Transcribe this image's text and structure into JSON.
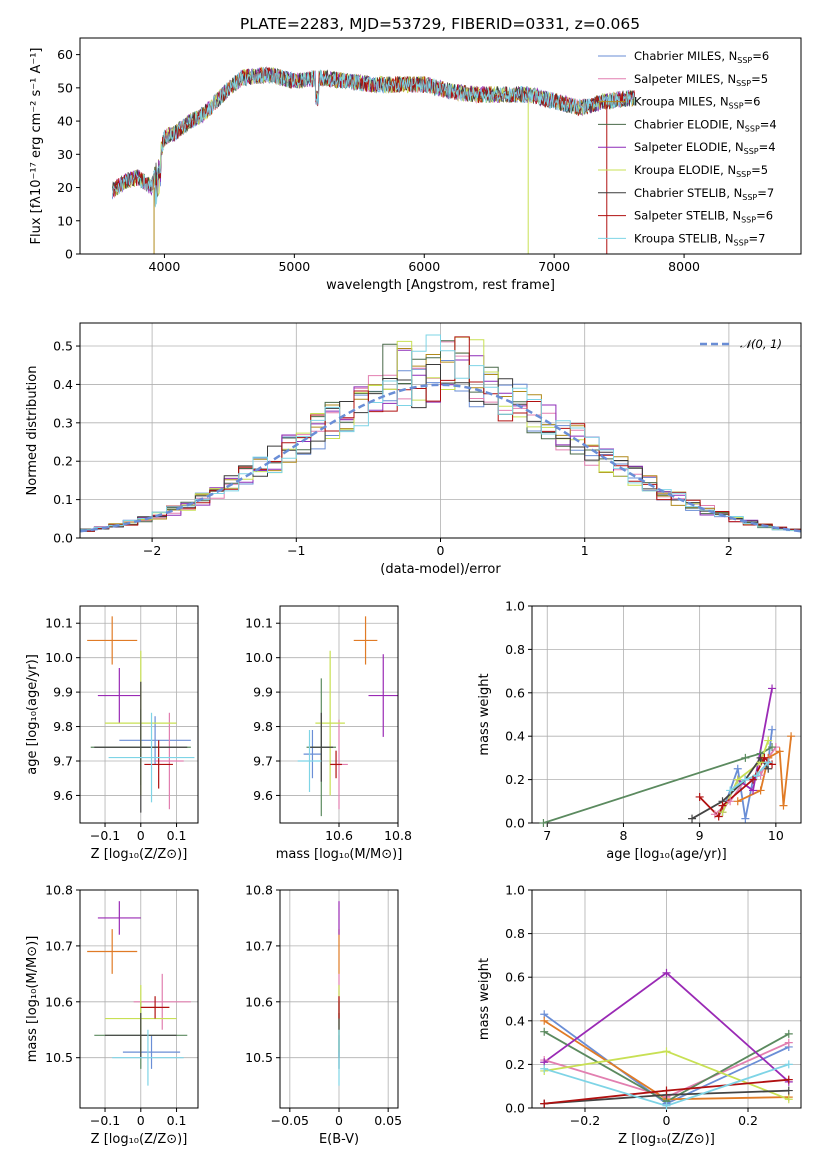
{
  "title": "PLATE=2283, MJD=53729, FIBERID=0331, z=0.065",
  "colors": [
    "#6a8ed6",
    "#e27fb0",
    "#b08a1c",
    "#4a6a4a",
    "#8e2cb8",
    "#c8e054",
    "#3a3a3a",
    "#b01010",
    "#7ed4e6"
  ],
  "colors_short": [
    "#6a8ed6",
    "#e27fb0",
    "#e07b26",
    "#5b8a5f",
    "#9a2ab5",
    "#c8e054",
    "#444444",
    "#b01010",
    "#7ed4e6"
  ],
  "chart_data": [
    {
      "id": "spectrum",
      "type": "line",
      "xlabel": "wavelength [Angstrom, rest frame]",
      "ylabel": "Flux [fλ10⁻¹⁷ erg cm⁻² s⁻¹ A⁻¹]",
      "xlim": [
        3350,
        8900
      ],
      "ylim": [
        0,
        65
      ],
      "xticks": [
        4000,
        5000,
        6000,
        7000,
        8000
      ],
      "yticks": [
        0,
        10,
        20,
        30,
        40,
        50,
        60
      ],
      "grid": false,
      "legend_position": "top-right",
      "series": [
        {
          "name": "Chabrier MILES, N",
          "sub": "SSP",
          "suffix": "=6"
        },
        {
          "name": "Salpeter MILES, N",
          "sub": "SSP",
          "suffix": "=5"
        },
        {
          "name": "Kroupa MILES, N",
          "sub": "SSP",
          "suffix": "=6"
        },
        {
          "name": "Chabrier ELODIE, N",
          "sub": "SSP",
          "suffix": "=4"
        },
        {
          "name": "Salpeter ELODIE, N",
          "sub": "SSP",
          "suffix": "=4"
        },
        {
          "name": "Kroupa ELODIE, N",
          "sub": "SSP",
          "suffix": "=5"
        },
        {
          "name": "Chabrier STELIB, N",
          "sub": "SSP",
          "suffix": "=7"
        },
        {
          "name": "Salpeter STELIB, N",
          "sub": "SSP",
          "suffix": "=6"
        },
        {
          "name": "Kroupa STELIB, N",
          "sub": "SSP",
          "suffix": "=7"
        }
      ],
      "continuum": {
        "x": [
          3600,
          3700,
          3800,
          3900,
          4000,
          4100,
          4200,
          4300,
          4400,
          4500,
          4600,
          4800,
          5000,
          5200,
          5400,
          5600,
          5800,
          6000,
          6200,
          6400,
          6600,
          6800,
          7000,
          7200,
          7400,
          7600
        ],
        "y": [
          19,
          22,
          23,
          20,
          35,
          37,
          40,
          42,
          46,
          50,
          53,
          54,
          52,
          53,
          52,
          51,
          51,
          51,
          49,
          48,
          48,
          48,
          46,
          44,
          46,
          47
        ]
      }
    },
    {
      "id": "residuals",
      "type": "histogram",
      "xlabel": "(data-model)/error",
      "ylabel": "Normed distribution",
      "xlim": [
        -2.5,
        2.5
      ],
      "ylim": [
        0,
        0.56
      ],
      "xticks": [
        -2,
        -1,
        0,
        1,
        2
      ],
      "yticks": [
        0.0,
        0.1,
        0.2,
        0.3,
        0.4,
        0.5
      ],
      "grid": true,
      "legend_position": "top-right",
      "reference_curve": "𝒩(0, 1)",
      "bin_width": 0.1
    },
    {
      "id": "age-vs-Z",
      "type": "errorbar",
      "xlabel": "Z [log₁₀(Z/Z⊙)]",
      "ylabel": "age  [log₁₀(age/yr)]",
      "xlim": [
        -0.17,
        0.16
      ],
      "ylim": [
        9.52,
        10.15
      ],
      "xticks": [
        -0.1,
        0.0,
        0.1
      ],
      "yticks": [
        9.6,
        9.7,
        9.8,
        9.9,
        10.0,
        10.1
      ],
      "grid": true,
      "points": [
        {
          "x": 0.04,
          "y": 9.76,
          "xe": 0.1,
          "ye": 0.07
        },
        {
          "x": 0.08,
          "y": 9.7,
          "xe": 0.04,
          "ye": 0.14
        },
        {
          "x": -0.08,
          "y": 10.05,
          "xe": 0.07,
          "ye": 0.07
        },
        {
          "x": 0.0,
          "y": 9.74,
          "xe": 0.14,
          "ye": 0.11
        },
        {
          "x": -0.06,
          "y": 9.89,
          "xe": 0.06,
          "ye": 0.08
        },
        {
          "x": 0.0,
          "y": 9.81,
          "xe": 0.1,
          "ye": 0.21
        },
        {
          "x": 0.0,
          "y": 9.74,
          "xe": 0.13,
          "ye": 0.19
        },
        {
          "x": 0.05,
          "y": 9.69,
          "xe": 0.04,
          "ye": 0.07
        },
        {
          "x": 0.03,
          "y": 9.71,
          "xe": 0.12,
          "ye": 0.13
        }
      ]
    },
    {
      "id": "age-vs-mass",
      "type": "errorbar",
      "xlabel": "mass [log₁₀(M/M⊙)]",
      "ylabel": "",
      "xlim": [
        10.4,
        10.8
      ],
      "ylim": [
        9.52,
        10.15
      ],
      "xticks": [
        10.6,
        10.8
      ],
      "yticks": [
        9.6,
        9.7,
        9.8,
        9.9,
        10.0,
        10.1
      ],
      "grid": true,
      "points": [
        {
          "x": 10.51,
          "y": 9.72,
          "xe": 0.03,
          "ye": 0.07
        },
        {
          "x": 10.6,
          "y": 9.69,
          "xe": 0.03,
          "ye": 0.13
        },
        {
          "x": 10.69,
          "y": 10.05,
          "xe": 0.04,
          "ye": 0.07
        },
        {
          "x": 10.54,
          "y": 9.74,
          "xe": 0.05,
          "ye": 0.2
        },
        {
          "x": 10.75,
          "y": 9.89,
          "xe": 0.05,
          "ye": 0.12
        },
        {
          "x": 10.57,
          "y": 9.81,
          "xe": 0.05,
          "ye": 0.21
        },
        {
          "x": 10.54,
          "y": 9.74,
          "xe": 0.04,
          "ye": 0.1
        },
        {
          "x": 10.59,
          "y": 9.69,
          "xe": 0.02,
          "ye": 0.04
        },
        {
          "x": 10.5,
          "y": 9.7,
          "xe": 0.04,
          "ye": 0.09
        }
      ]
    },
    {
      "id": "massweight-vs-age",
      "type": "line",
      "xlabel": "age  [log₁₀(age/yr)]",
      "ylabel": "mass weight",
      "xlim": [
        6.8,
        10.33
      ],
      "ylim": [
        0,
        1
      ],
      "xticks": [
        7,
        8,
        9,
        10
      ],
      "yticks": [
        0.0,
        0.2,
        0.4,
        0.6,
        0.8,
        1.0
      ],
      "grid": true,
      "series": [
        {
          "x": [
            9.3,
            9.5,
            9.6,
            9.7,
            9.9,
            9.95
          ],
          "y": [
            0.05,
            0.25,
            0.02,
            0.2,
            0.28,
            0.43
          ]
        },
        {
          "x": [
            9.2,
            9.4,
            9.6,
            9.8,
            9.9,
            10.0
          ],
          "y": [
            0.04,
            0.1,
            0.2,
            0.22,
            0.3,
            0.35
          ]
        },
        {
          "x": [
            9.5,
            9.8,
            9.9,
            10.05,
            10.1,
            10.2
          ],
          "y": [
            0.1,
            0.15,
            0.3,
            0.33,
            0.08,
            0.4
          ]
        },
        {
          "x": [
            6.95,
            9.6,
            9.8,
            9.95
          ],
          "y": [
            0.0,
            0.3,
            0.32,
            0.35
          ]
        },
        {
          "x": [
            9.3,
            9.5,
            9.7,
            9.95
          ],
          "y": [
            0.05,
            0.2,
            0.15,
            0.62
          ]
        },
        {
          "x": [
            9.3,
            9.5,
            9.8,
            9.9
          ],
          "y": [
            0.05,
            0.2,
            0.28,
            0.38
          ]
        },
        {
          "x": [
            8.9,
            9.3,
            9.6,
            9.8,
            9.9
          ],
          "y": [
            0.02,
            0.1,
            0.2,
            0.3,
            0.25
          ]
        },
        {
          "x": [
            9.0,
            9.25,
            9.3,
            9.7,
            9.85,
            9.95
          ],
          "y": [
            0.12,
            0.03,
            0.08,
            0.2,
            0.3,
            0.27
          ]
        },
        {
          "x": [
            9.4,
            9.6,
            9.75,
            9.9
          ],
          "y": [
            0.15,
            0.2,
            0.22,
            0.28
          ]
        }
      ]
    },
    {
      "id": "mass-vs-Z",
      "type": "errorbar",
      "xlabel": "Z [log₁₀(Z/Z⊙)]",
      "ylabel": "mass [log₁₀(M/M⊙)]",
      "xlim": [
        -0.17,
        0.16
      ],
      "ylim": [
        10.41,
        10.8
      ],
      "xticks": [
        -0.1,
        0.0,
        0.1
      ],
      "yticks": [
        10.5,
        10.6,
        10.7,
        10.8
      ],
      "grid": true,
      "points": [
        {
          "x": 0.03,
          "y": 10.51,
          "xe": 0.08,
          "ye": 0.03
        },
        {
          "x": 0.06,
          "y": 10.6,
          "xe": 0.08,
          "ye": 0.05
        },
        {
          "x": -0.08,
          "y": 10.69,
          "xe": 0.07,
          "ye": 0.04
        },
        {
          "x": 0.0,
          "y": 10.54,
          "xe": 0.13,
          "ye": 0.06
        },
        {
          "x": -0.06,
          "y": 10.75,
          "xe": 0.06,
          "ye": 0.03
        },
        {
          "x": 0.0,
          "y": 10.57,
          "xe": 0.1,
          "ye": 0.06
        },
        {
          "x": 0.0,
          "y": 10.54,
          "xe": 0.1,
          "ye": 0.04
        },
        {
          "x": 0.04,
          "y": 10.59,
          "xe": 0.04,
          "ye": 0.02
        },
        {
          "x": 0.02,
          "y": 10.5,
          "xe": 0.1,
          "ye": 0.05
        }
      ]
    },
    {
      "id": "mass-vs-EBV",
      "type": "errorbar",
      "xlabel": "E(B-V)",
      "ylabel": "",
      "xlim": [
        -0.06,
        0.06
      ],
      "ylim": [
        10.41,
        10.8
      ],
      "xticks": [
        -0.05,
        0.0,
        0.05
      ],
      "yticks": [
        10.5,
        10.6,
        10.7,
        10.8
      ],
      "grid": true,
      "points": [
        {
          "x": 0.0,
          "y": 10.51,
          "xe": 0.0,
          "ye": 0.03
        },
        {
          "x": 0.0,
          "y": 10.6,
          "xe": 0.0,
          "ye": 0.05
        },
        {
          "x": 0.0,
          "y": 10.69,
          "xe": 0.0,
          "ye": 0.04
        },
        {
          "x": 0.0,
          "y": 10.54,
          "xe": 0.0,
          "ye": 0.06
        },
        {
          "x": 0.0,
          "y": 10.75,
          "xe": 0.0,
          "ye": 0.03
        },
        {
          "x": 0.0,
          "y": 10.57,
          "xe": 0.0,
          "ye": 0.06
        },
        {
          "x": 0.0,
          "y": 10.54,
          "xe": 0.0,
          "ye": 0.04
        },
        {
          "x": 0.0,
          "y": 10.59,
          "xe": 0.0,
          "ye": 0.02
        },
        {
          "x": 0.0,
          "y": 10.5,
          "xe": 0.0,
          "ye": 0.05
        }
      ]
    },
    {
      "id": "massweight-vs-Z",
      "type": "line",
      "xlabel": "Z [log₁₀(Z/Z⊙)]",
      "ylabel": "mass weight",
      "xlim": [
        -0.33,
        0.33
      ],
      "ylim": [
        0,
        1
      ],
      "xticks": [
        -0.2,
        0.0,
        0.2
      ],
      "yticks": [
        0.0,
        0.2,
        0.4,
        0.6,
        0.8,
        1.0
      ],
      "grid": true,
      "series": [
        {
          "x": [
            -0.3,
            0.0,
            0.3
          ],
          "y": [
            0.43,
            0.02,
            0.28
          ]
        },
        {
          "x": [
            -0.3,
            0.0,
            0.3
          ],
          "y": [
            0.22,
            0.05,
            0.3
          ]
        },
        {
          "x": [
            -0.3,
            0.0,
            0.3
          ],
          "y": [
            0.4,
            0.04,
            0.05
          ]
        },
        {
          "x": [
            -0.3,
            0.0,
            0.3
          ],
          "y": [
            0.35,
            0.03,
            0.34
          ]
        },
        {
          "x": [
            -0.3,
            0.0,
            0.3
          ],
          "y": [
            0.21,
            0.62,
            0.12
          ]
        },
        {
          "x": [
            -0.3,
            0.0,
            0.3
          ],
          "y": [
            0.17,
            0.26,
            0.04
          ]
        },
        {
          "x": [
            -0.3,
            0.0,
            0.3
          ],
          "y": [
            0.02,
            0.06,
            0.08
          ]
        },
        {
          "x": [
            -0.3,
            0.0,
            0.3
          ],
          "y": [
            0.02,
            0.08,
            0.13
          ]
        },
        {
          "x": [
            -0.3,
            0.0,
            0.3
          ],
          "y": [
            0.18,
            0.01,
            0.2
          ]
        }
      ]
    }
  ]
}
